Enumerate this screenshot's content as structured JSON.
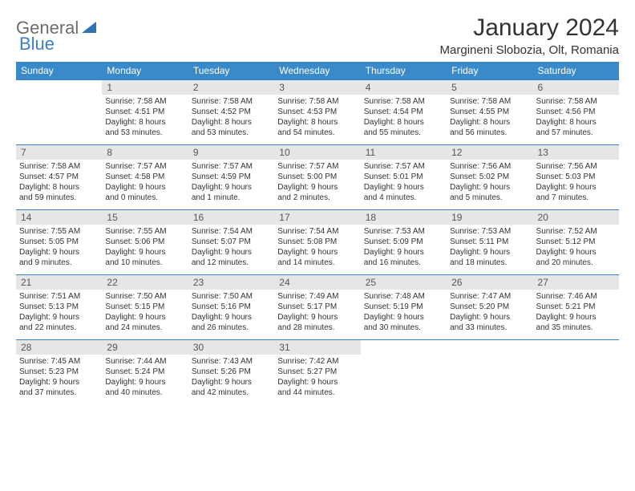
{
  "brand": {
    "part1": "General",
    "part2": "Blue"
  },
  "title": "January 2024",
  "location": "Margineni Slobozia, Olt, Romania",
  "colors": {
    "header_bg": "#3a8ac9",
    "header_text": "#ffffff",
    "daynum_bg": "#e6e6e6",
    "border": "#3a7fc4",
    "text": "#333333",
    "logo_gray": "#6c6c6c",
    "logo_blue": "#3a7fc4"
  },
  "weekdays": [
    "Sunday",
    "Monday",
    "Tuesday",
    "Wednesday",
    "Thursday",
    "Friday",
    "Saturday"
  ],
  "weeks": [
    [
      {
        "blank": true
      },
      {
        "n": "1",
        "sr": "Sunrise: 7:58 AM",
        "ss": "Sunset: 4:51 PM",
        "d1": "Daylight: 8 hours",
        "d2": "and 53 minutes."
      },
      {
        "n": "2",
        "sr": "Sunrise: 7:58 AM",
        "ss": "Sunset: 4:52 PM",
        "d1": "Daylight: 8 hours",
        "d2": "and 53 minutes."
      },
      {
        "n": "3",
        "sr": "Sunrise: 7:58 AM",
        "ss": "Sunset: 4:53 PM",
        "d1": "Daylight: 8 hours",
        "d2": "and 54 minutes."
      },
      {
        "n": "4",
        "sr": "Sunrise: 7:58 AM",
        "ss": "Sunset: 4:54 PM",
        "d1": "Daylight: 8 hours",
        "d2": "and 55 minutes."
      },
      {
        "n": "5",
        "sr": "Sunrise: 7:58 AM",
        "ss": "Sunset: 4:55 PM",
        "d1": "Daylight: 8 hours",
        "d2": "and 56 minutes."
      },
      {
        "n": "6",
        "sr": "Sunrise: 7:58 AM",
        "ss": "Sunset: 4:56 PM",
        "d1": "Daylight: 8 hours",
        "d2": "and 57 minutes."
      }
    ],
    [
      {
        "n": "7",
        "sr": "Sunrise: 7:58 AM",
        "ss": "Sunset: 4:57 PM",
        "d1": "Daylight: 8 hours",
        "d2": "and 59 minutes."
      },
      {
        "n": "8",
        "sr": "Sunrise: 7:57 AM",
        "ss": "Sunset: 4:58 PM",
        "d1": "Daylight: 9 hours",
        "d2": "and 0 minutes."
      },
      {
        "n": "9",
        "sr": "Sunrise: 7:57 AM",
        "ss": "Sunset: 4:59 PM",
        "d1": "Daylight: 9 hours",
        "d2": "and 1 minute."
      },
      {
        "n": "10",
        "sr": "Sunrise: 7:57 AM",
        "ss": "Sunset: 5:00 PM",
        "d1": "Daylight: 9 hours",
        "d2": "and 2 minutes."
      },
      {
        "n": "11",
        "sr": "Sunrise: 7:57 AM",
        "ss": "Sunset: 5:01 PM",
        "d1": "Daylight: 9 hours",
        "d2": "and 4 minutes."
      },
      {
        "n": "12",
        "sr": "Sunrise: 7:56 AM",
        "ss": "Sunset: 5:02 PM",
        "d1": "Daylight: 9 hours",
        "d2": "and 5 minutes."
      },
      {
        "n": "13",
        "sr": "Sunrise: 7:56 AM",
        "ss": "Sunset: 5:03 PM",
        "d1": "Daylight: 9 hours",
        "d2": "and 7 minutes."
      }
    ],
    [
      {
        "n": "14",
        "sr": "Sunrise: 7:55 AM",
        "ss": "Sunset: 5:05 PM",
        "d1": "Daylight: 9 hours",
        "d2": "and 9 minutes."
      },
      {
        "n": "15",
        "sr": "Sunrise: 7:55 AM",
        "ss": "Sunset: 5:06 PM",
        "d1": "Daylight: 9 hours",
        "d2": "and 10 minutes."
      },
      {
        "n": "16",
        "sr": "Sunrise: 7:54 AM",
        "ss": "Sunset: 5:07 PM",
        "d1": "Daylight: 9 hours",
        "d2": "and 12 minutes."
      },
      {
        "n": "17",
        "sr": "Sunrise: 7:54 AM",
        "ss": "Sunset: 5:08 PM",
        "d1": "Daylight: 9 hours",
        "d2": "and 14 minutes."
      },
      {
        "n": "18",
        "sr": "Sunrise: 7:53 AM",
        "ss": "Sunset: 5:09 PM",
        "d1": "Daylight: 9 hours",
        "d2": "and 16 minutes."
      },
      {
        "n": "19",
        "sr": "Sunrise: 7:53 AM",
        "ss": "Sunset: 5:11 PM",
        "d1": "Daylight: 9 hours",
        "d2": "and 18 minutes."
      },
      {
        "n": "20",
        "sr": "Sunrise: 7:52 AM",
        "ss": "Sunset: 5:12 PM",
        "d1": "Daylight: 9 hours",
        "d2": "and 20 minutes."
      }
    ],
    [
      {
        "n": "21",
        "sr": "Sunrise: 7:51 AM",
        "ss": "Sunset: 5:13 PM",
        "d1": "Daylight: 9 hours",
        "d2": "and 22 minutes."
      },
      {
        "n": "22",
        "sr": "Sunrise: 7:50 AM",
        "ss": "Sunset: 5:15 PM",
        "d1": "Daylight: 9 hours",
        "d2": "and 24 minutes."
      },
      {
        "n": "23",
        "sr": "Sunrise: 7:50 AM",
        "ss": "Sunset: 5:16 PM",
        "d1": "Daylight: 9 hours",
        "d2": "and 26 minutes."
      },
      {
        "n": "24",
        "sr": "Sunrise: 7:49 AM",
        "ss": "Sunset: 5:17 PM",
        "d1": "Daylight: 9 hours",
        "d2": "and 28 minutes."
      },
      {
        "n": "25",
        "sr": "Sunrise: 7:48 AM",
        "ss": "Sunset: 5:19 PM",
        "d1": "Daylight: 9 hours",
        "d2": "and 30 minutes."
      },
      {
        "n": "26",
        "sr": "Sunrise: 7:47 AM",
        "ss": "Sunset: 5:20 PM",
        "d1": "Daylight: 9 hours",
        "d2": "and 33 minutes."
      },
      {
        "n": "27",
        "sr": "Sunrise: 7:46 AM",
        "ss": "Sunset: 5:21 PM",
        "d1": "Daylight: 9 hours",
        "d2": "and 35 minutes."
      }
    ],
    [
      {
        "n": "28",
        "sr": "Sunrise: 7:45 AM",
        "ss": "Sunset: 5:23 PM",
        "d1": "Daylight: 9 hours",
        "d2": "and 37 minutes."
      },
      {
        "n": "29",
        "sr": "Sunrise: 7:44 AM",
        "ss": "Sunset: 5:24 PM",
        "d1": "Daylight: 9 hours",
        "d2": "and 40 minutes."
      },
      {
        "n": "30",
        "sr": "Sunrise: 7:43 AM",
        "ss": "Sunset: 5:26 PM",
        "d1": "Daylight: 9 hours",
        "d2": "and 42 minutes."
      },
      {
        "n": "31",
        "sr": "Sunrise: 7:42 AM",
        "ss": "Sunset: 5:27 PM",
        "d1": "Daylight: 9 hours",
        "d2": "and 44 minutes."
      },
      {
        "blank": true
      },
      {
        "blank": true
      },
      {
        "blank": true
      }
    ]
  ]
}
